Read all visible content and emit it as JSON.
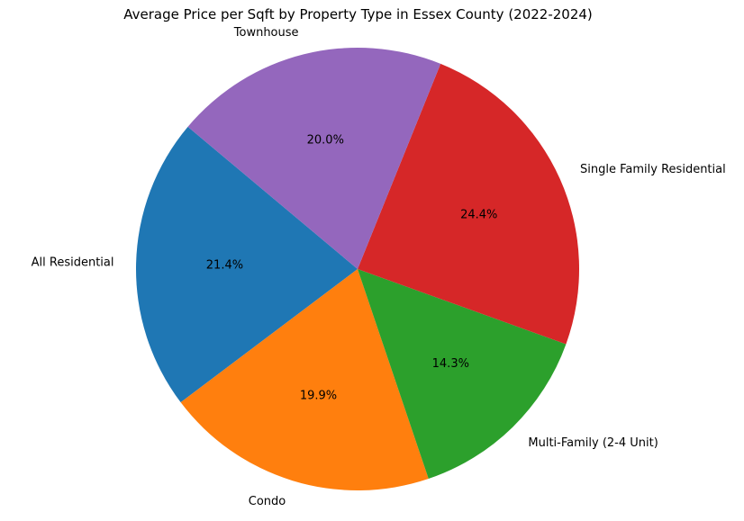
{
  "chart_data": {
    "type": "pie",
    "title": "Average Price per Sqft by Property Type in Essex County (2022-2024)",
    "categories": [
      "All Residential",
      "Condo",
      "Multi-Family (2-4 Unit)",
      "Single Family Residential",
      "Townhouse"
    ],
    "values": [
      21.4,
      19.9,
      14.3,
      24.4,
      20.0
    ],
    "value_labels": [
      "21.4%",
      "19.9%",
      "14.3%",
      "24.4%",
      "20.0%"
    ],
    "colors": [
      "#1f77b4",
      "#ff7f0e",
      "#2ca02c",
      "#d62728",
      "#9467bd"
    ],
    "start_angle_deg": 140,
    "direction": "counterclockwise",
    "legend": "none"
  }
}
